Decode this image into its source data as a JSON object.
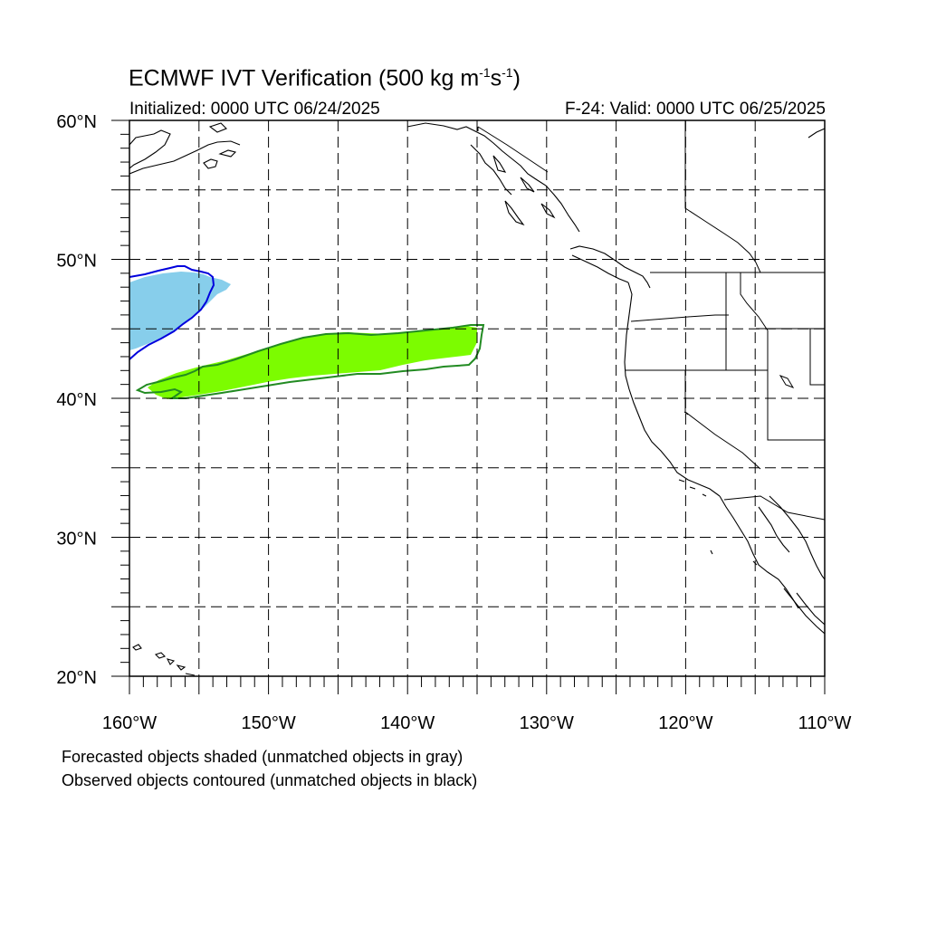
{
  "title": {
    "main": "ECMWF IVT Verification (500 kg m",
    "sup1": "-1",
    "mid": "s",
    "sup2": "-1",
    "close": ")"
  },
  "subtitle_left": "Initialized: 0000 UTC 06/24/2025",
  "subtitle_right": "F-24: Valid: 0000 UTC 06/25/2025",
  "notes": [
    "Forecasted objects shaded (unmatched objects in gray)",
    "Observed objects contoured (unmatched objects in black)"
  ],
  "map": {
    "lon_range": [
      -160,
      -110
    ],
    "lat_range": [
      20,
      60
    ],
    "lat_labels": [
      {
        "lat": 60,
        "text": "60°N"
      },
      {
        "lat": 50,
        "text": "50°N"
      },
      {
        "lat": 40,
        "text": "40°N"
      },
      {
        "lat": 30,
        "text": "30°N"
      },
      {
        "lat": 20,
        "text": "20°N"
      }
    ],
    "lon_labels": [
      {
        "lon": -160,
        "text": "160°W"
      },
      {
        "lon": -150,
        "text": "150°W"
      },
      {
        "lon": -140,
        "text": "140°W"
      },
      {
        "lon": -130,
        "text": "130°W"
      },
      {
        "lon": -120,
        "text": "120°W"
      },
      {
        "lon": -110,
        "text": "110°W"
      }
    ],
    "grid_style": "dashed every 5 degrees",
    "colors": {
      "blue_forecast_fill": "#87ceeb",
      "blue_observed_contour": "#0000dd",
      "green_forecast_fill": "#7cfc00",
      "green_observed_contour": "#228b22",
      "coastline": "#000000"
    }
  }
}
